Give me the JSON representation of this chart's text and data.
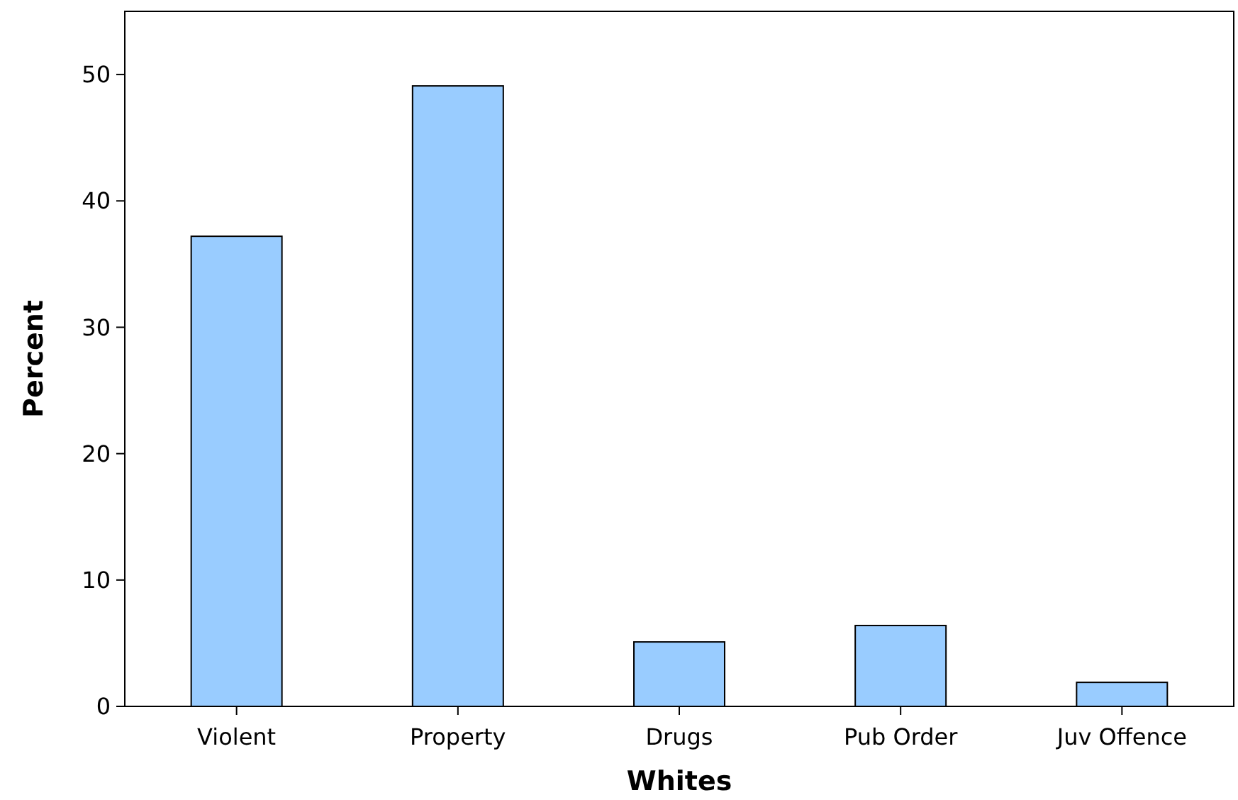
{
  "chart_data": {
    "type": "bar",
    "xlabel": "Whites",
    "ylabel": "Percent",
    "categories": [
      "Violent",
      "Property",
      "Drugs",
      "Pub Order",
      "Juv Offence"
    ],
    "values": [
      37.2,
      49.1,
      5.1,
      6.4,
      1.9
    ],
    "color": "#99ccff",
    "ylim": [
      0,
      55
    ],
    "yticks": [
      0,
      10,
      20,
      30,
      40,
      50
    ],
    "grid": false
  }
}
